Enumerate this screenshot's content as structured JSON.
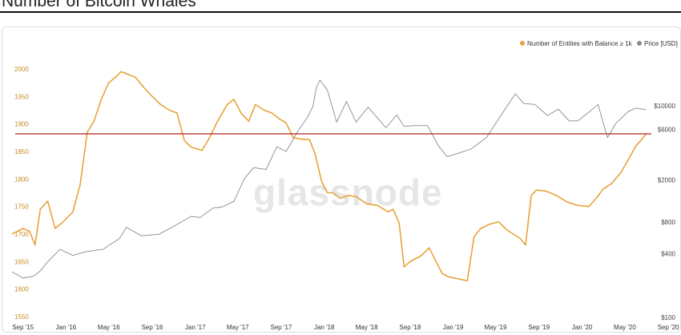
{
  "page": {
    "title": "Number of Bitcoin Whales"
  },
  "watermark": "glassnode",
  "chart_data": {
    "type": "line",
    "title": "Number of Bitcoin Whales",
    "legend": {
      "placement": "top-right",
      "entries": [
        {
          "label": "Number of Entities with Balance ≥ 1k",
          "color": "#e8a33d"
        },
        {
          "label": "Price [USD]",
          "color": "#8a8a8a"
        }
      ]
    },
    "grid": false,
    "x_ticks": [
      "Sep '15",
      "Jan '16",
      "May '16",
      "Sep '16",
      "Jan '17",
      "May '17",
      "Sep '17",
      "Jan '18",
      "May '18",
      "Sep '18",
      "Jan '19",
      "May '19",
      "Sep '19",
      "Jan '20",
      "May '20",
      "Sep '20"
    ],
    "y_left": {
      "ticks": [
        1550,
        1600,
        1650,
        1700,
        1750,
        1800,
        1850,
        1900,
        1950,
        2000
      ],
      "range": [
        1550,
        2015
      ],
      "color": "#c98a22"
    },
    "y_right": {
      "scale": "log",
      "ticks": [
        100,
        400,
        800,
        2000,
        6000,
        10000
      ],
      "tick_labels": [
        "$100",
        "$400",
        "$800",
        "$2000",
        "$6000",
        "$10000"
      ],
      "range": [
        100,
        20000
      ]
    },
    "reference_line": {
      "value": 1882,
      "color": "#b22222"
    },
    "series": [
      {
        "name": "Number of Entities with Balance ≥ 1k",
        "axis": "left",
        "color": "#e8a33d",
        "points": [
          [
            "2015-08-01",
            1700
          ],
          [
            "2015-09-01",
            1710
          ],
          [
            "2015-09-20",
            1705
          ],
          [
            "2015-10-05",
            1680
          ],
          [
            "2015-10-20",
            1745
          ],
          [
            "2015-11-10",
            1760
          ],
          [
            "2015-12-01",
            1710
          ],
          [
            "2015-12-20",
            1720
          ],
          [
            "2016-01-20",
            1740
          ],
          [
            "2016-02-10",
            1790
          ],
          [
            "2016-03-01",
            1885
          ],
          [
            "2016-03-20",
            1905
          ],
          [
            "2016-04-10",
            1945
          ],
          [
            "2016-05-01",
            1975
          ],
          [
            "2016-05-20",
            1985
          ],
          [
            "2016-06-05",
            1995
          ],
          [
            "2016-06-25",
            1990
          ],
          [
            "2016-07-15",
            1985
          ],
          [
            "2016-08-10",
            1965
          ],
          [
            "2016-09-01",
            1950
          ],
          [
            "2016-09-25",
            1935
          ],
          [
            "2016-10-20",
            1925
          ],
          [
            "2016-11-10",
            1920
          ],
          [
            "2016-12-01",
            1870
          ],
          [
            "2016-12-20",
            1858
          ],
          [
            "2017-01-20",
            1852
          ],
          [
            "2017-02-10",
            1875
          ],
          [
            "2017-03-05",
            1905
          ],
          [
            "2017-04-01",
            1935
          ],
          [
            "2017-04-20",
            1945
          ],
          [
            "2017-05-10",
            1920
          ],
          [
            "2017-06-01",
            1905
          ],
          [
            "2017-06-20",
            1935
          ],
          [
            "2017-07-15",
            1925
          ],
          [
            "2017-08-05",
            1920
          ],
          [
            "2017-08-25",
            1910
          ],
          [
            "2017-09-15",
            1902
          ],
          [
            "2017-10-05",
            1875
          ],
          [
            "2017-11-01",
            1872
          ],
          [
            "2017-11-20",
            1872
          ],
          [
            "2017-12-05",
            1848
          ],
          [
            "2017-12-25",
            1795
          ],
          [
            "2018-01-10",
            1775
          ],
          [
            "2018-01-25",
            1775
          ],
          [
            "2018-02-15",
            1765
          ],
          [
            "2018-03-10",
            1770
          ],
          [
            "2018-04-01",
            1768
          ],
          [
            "2018-05-01",
            1755
          ],
          [
            "2018-06-01",
            1752
          ],
          [
            "2018-07-01",
            1740
          ],
          [
            "2018-07-15",
            1745
          ],
          [
            "2018-08-01",
            1720
          ],
          [
            "2018-08-15",
            1640
          ],
          [
            "2018-09-01",
            1650
          ],
          [
            "2018-10-01",
            1660
          ],
          [
            "2018-10-25",
            1675
          ],
          [
            "2018-11-15",
            1648
          ],
          [
            "2018-12-01",
            1628
          ],
          [
            "2018-12-20",
            1622
          ],
          [
            "2019-01-20",
            1618
          ],
          [
            "2019-02-10",
            1615
          ],
          [
            "2019-03-01",
            1695
          ],
          [
            "2019-03-20",
            1710
          ],
          [
            "2019-04-15",
            1718
          ],
          [
            "2019-05-10",
            1722
          ],
          [
            "2019-06-01",
            1708
          ],
          [
            "2019-06-20",
            1700
          ],
          [
            "2019-07-10",
            1692
          ],
          [
            "2019-07-25",
            1680
          ],
          [
            "2019-08-10",
            1770
          ],
          [
            "2019-08-25",
            1780
          ],
          [
            "2019-09-20",
            1778
          ],
          [
            "2019-10-20",
            1770
          ],
          [
            "2019-11-20",
            1758
          ],
          [
            "2019-12-20",
            1752
          ],
          [
            "2020-01-20",
            1750
          ],
          [
            "2020-02-10",
            1765
          ],
          [
            "2020-03-01",
            1782
          ],
          [
            "2020-03-25",
            1792
          ],
          [
            "2020-04-20",
            1812
          ],
          [
            "2020-05-15",
            1840
          ],
          [
            "2020-06-01",
            1860
          ],
          [
            "2020-06-15",
            1870
          ],
          [
            "2020-06-30",
            1882
          ]
        ]
      },
      {
        "name": "Price [USD]",
        "axis": "right",
        "color": "#8a8a8a",
        "points": [
          [
            "2015-08-01",
            270
          ],
          [
            "2015-09-01",
            235
          ],
          [
            "2015-10-01",
            245
          ],
          [
            "2015-10-20",
            275
          ],
          [
            "2015-11-10",
            335
          ],
          [
            "2015-12-15",
            440
          ],
          [
            "2016-01-20",
            385
          ],
          [
            "2016-03-01",
            420
          ],
          [
            "2016-04-15",
            440
          ],
          [
            "2016-06-01",
            560
          ],
          [
            "2016-06-20",
            710
          ],
          [
            "2016-08-01",
            590
          ],
          [
            "2016-09-20",
            610
          ],
          [
            "2016-11-01",
            725
          ],
          [
            "2016-12-20",
            900
          ],
          [
            "2017-01-15",
            880
          ],
          [
            "2017-02-20",
            1080
          ],
          [
            "2017-03-20",
            1110
          ],
          [
            "2017-04-20",
            1250
          ],
          [
            "2017-05-20",
            2050
          ],
          [
            "2017-06-15",
            2600
          ],
          [
            "2017-07-20",
            2500
          ],
          [
            "2017-08-20",
            4100
          ],
          [
            "2017-09-15",
            3700
          ],
          [
            "2017-10-20",
            5900
          ],
          [
            "2017-11-15",
            7800
          ],
          [
            "2017-11-30",
            9900
          ],
          [
            "2017-12-10",
            15000
          ],
          [
            "2017-12-20",
            17500
          ],
          [
            "2018-01-10",
            14000
          ],
          [
            "2018-02-05",
            7000
          ],
          [
            "2018-03-05",
            11000
          ],
          [
            "2018-04-01",
            7000
          ],
          [
            "2018-05-05",
            9700
          ],
          [
            "2018-06-25",
            6200
          ],
          [
            "2018-07-25",
            8200
          ],
          [
            "2018-08-15",
            6400
          ],
          [
            "2018-09-15",
            6500
          ],
          [
            "2018-10-20",
            6500
          ],
          [
            "2018-11-20",
            4200
          ],
          [
            "2018-12-15",
            3300
          ],
          [
            "2019-01-20",
            3600
          ],
          [
            "2019-02-20",
            3900
          ],
          [
            "2019-04-05",
            5000
          ],
          [
            "2019-05-15",
            8000
          ],
          [
            "2019-06-26",
            13000
          ],
          [
            "2019-07-20",
            10500
          ],
          [
            "2019-08-20",
            10300
          ],
          [
            "2019-09-25",
            8100
          ],
          [
            "2019-10-26",
            9300
          ],
          [
            "2019-11-25",
            7200
          ],
          [
            "2019-12-20",
            7200
          ],
          [
            "2020-01-20",
            8700
          ],
          [
            "2020-02-15",
            10300
          ],
          [
            "2020-03-13",
            5000
          ],
          [
            "2020-04-05",
            6800
          ],
          [
            "2020-05-10",
            8800
          ],
          [
            "2020-06-01",
            9500
          ],
          [
            "2020-06-30",
            9200
          ]
        ]
      }
    ]
  }
}
